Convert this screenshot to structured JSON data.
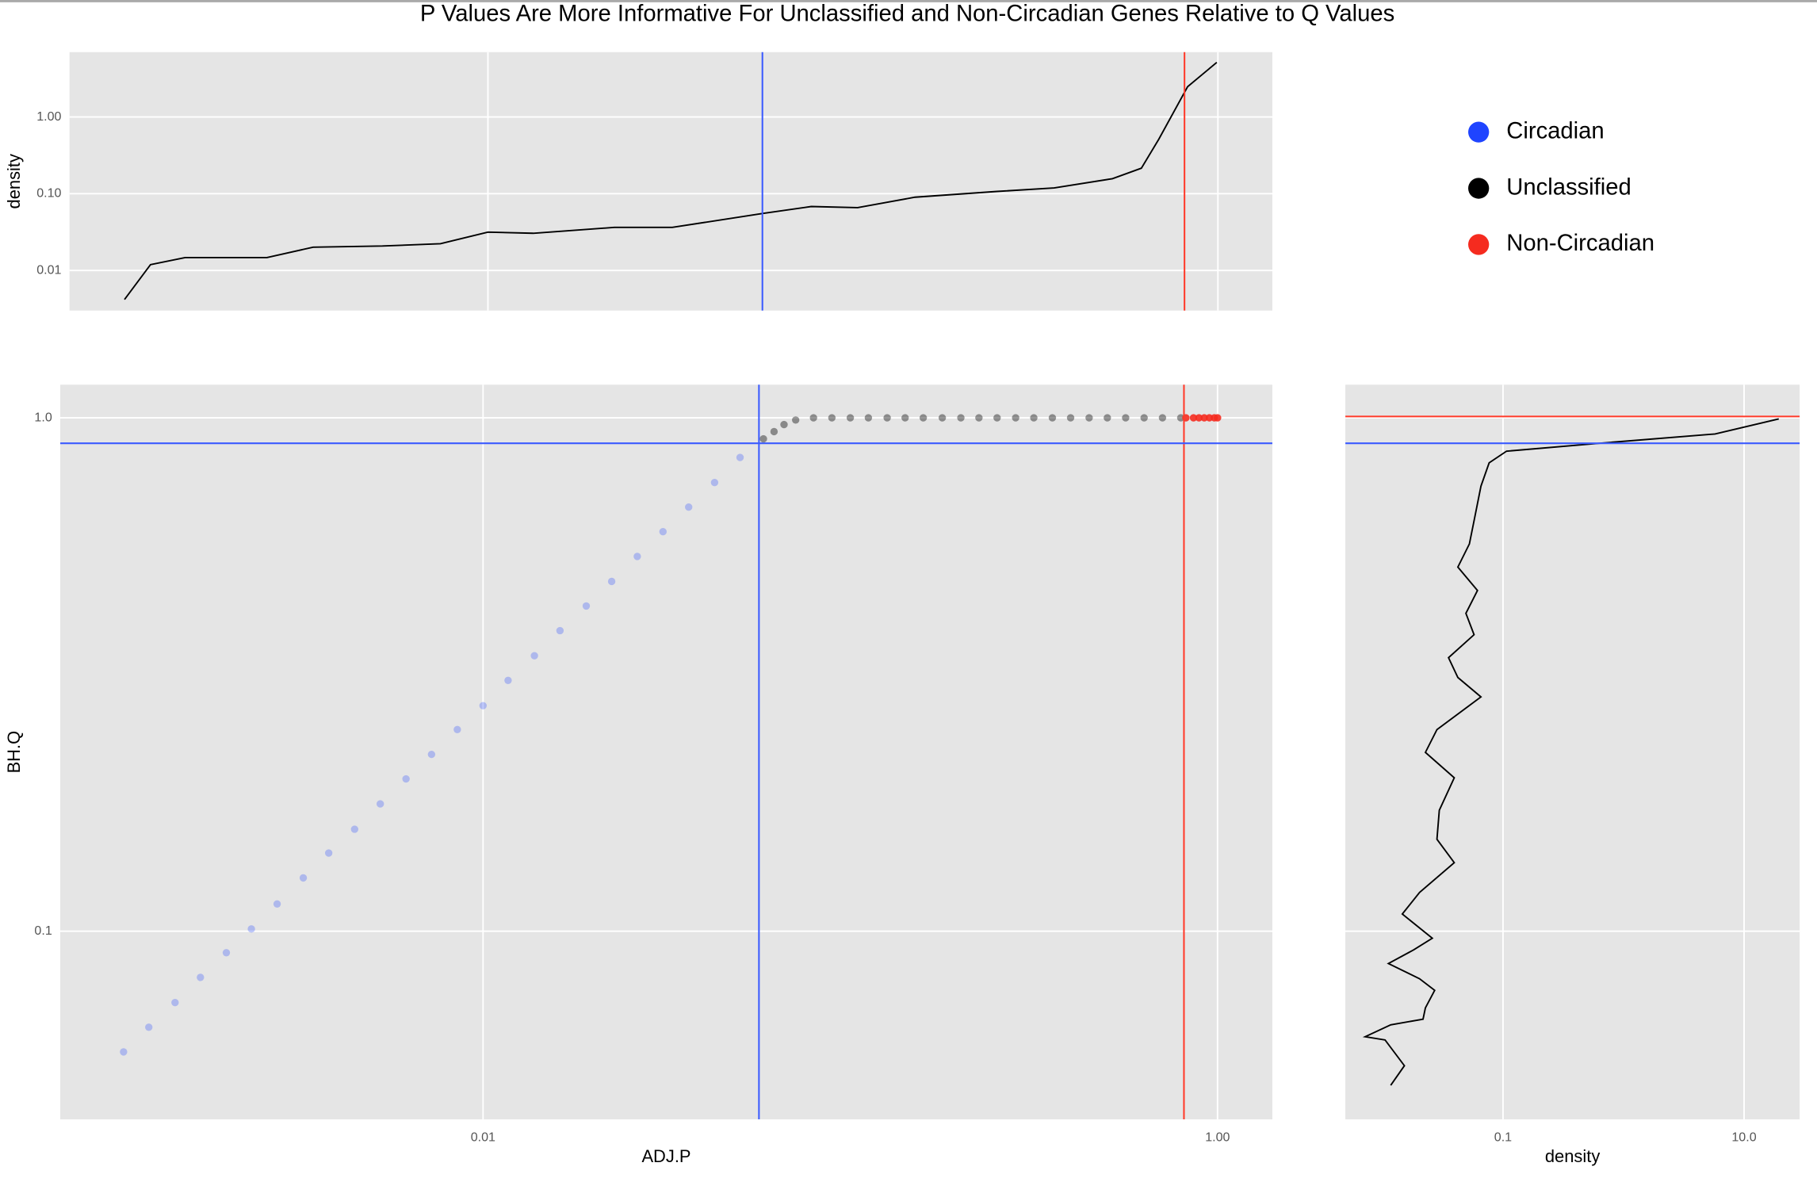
{
  "chart_data": [
    {
      "type": "line",
      "title": "P Values Are More Informative For Unclassified and Non-Circadian Genes Relative to Q Values",
      "ylabel": "density",
      "xscale": "log",
      "yscale": "log",
      "xlim": [
        0.000714,
        1.41
      ],
      "ylim": [
        0.003,
        7
      ],
      "xticks": [
        0.01,
        1
      ],
      "xtick_labels": false,
      "yticks": [
        0.01,
        {
          "value": 0.1,
          "label": "0.10"
        },
        {
          "value": 1,
          "label": "1.00"
        }
      ],
      "ytick_labels": true,
      "grid": true,
      "color": "#000000",
      "x": [
        0.00101,
        0.00119,
        0.00148,
        0.00248,
        0.00332,
        0.00514,
        0.00741,
        0.01,
        0.0133,
        0.0222,
        0.032,
        0.0565,
        0.0769,
        0.103,
        0.148,
        0.248,
        0.356,
        0.514,
        0.617,
        0.689,
        0.826,
        0.993
      ],
      "values": [
        0.00418,
        0.0119,
        0.0147,
        0.0147,
        0.0201,
        0.0208,
        0.0223,
        0.0316,
        0.0305,
        0.0364,
        0.0364,
        0.0552,
        0.0681,
        0.0658,
        0.0901,
        0.107,
        0.119,
        0.157,
        0.215,
        0.515,
        2.48,
        5.15
      ],
      "vlines": [
        {
          "value": 0.0565,
          "color": "#3b5bff"
        },
        {
          "value": 0.81,
          "color": "#ff3a2a"
        }
      ]
    },
    {
      "type": "scatter",
      "xlabel": "ADJ.P",
      "ylabel": "BH.Q",
      "xscale": "log",
      "yscale": "log",
      "xlim": [
        0.000706,
        1.41
      ],
      "ylim": [
        0.043,
        1.16
      ],
      "xticks": [
        0.01,
        {
          "value": 1,
          "label": "1.00"
        }
      ],
      "xtick_labels": true,
      "yticks": [
        0.1,
        {
          "value": 1,
          "label": "1.0"
        }
      ],
      "ytick_labels": true,
      "grid": true,
      "legend": "right",
      "series": [
        {
          "name": "Circadian",
          "color": "#1f44ff",
          "x": [
            0.00105,
            0.00123,
            0.00145,
            0.0017,
            0.002,
            0.00234,
            0.00275,
            0.00324,
            0.0038,
            0.00447,
            0.00525,
            0.00617,
            0.00724,
            0.00851,
            0.01,
            0.0117,
            0.0138,
            0.0162,
            0.0191,
            0.0224,
            0.0263,
            0.0309,
            0.0363,
            0.0427,
            0.0501
          ],
          "values": [
            0.0582,
            0.065,
            0.0726,
            0.0813,
            0.0908,
            0.101,
            0.113,
            0.127,
            0.142,
            0.158,
            0.177,
            0.198,
            0.221,
            0.247,
            0.275,
            0.308,
            0.344,
            0.385,
            0.43,
            0.48,
            0.537,
            0.6,
            0.67,
            0.748,
            0.837
          ]
        },
        {
          "name": "Unclassified",
          "color": "#000000",
          "x": [
            0.058,
            0.062,
            0.066,
            0.071,
            0.0794,
            0.0891,
            0.1,
            0.112,
            0.126,
            0.141,
            0.158,
            0.178,
            0.2,
            0.224,
            0.251,
            0.282,
            0.316,
            0.355,
            0.398,
            0.447,
            0.501,
            0.562,
            0.631,
            0.708,
            0.794
          ],
          "values": [
            0.91,
            0.94,
            0.97,
            0.99,
            1,
            1,
            1,
            1,
            1,
            1,
            1,
            1,
            1,
            1,
            1,
            1,
            1,
            1,
            1,
            1,
            1,
            1,
            1,
            1,
            1
          ]
        },
        {
          "name": "Non-Circadian",
          "color": "#f52b1f",
          "x": [
            0.82,
            0.86,
            0.89,
            0.92,
            0.95,
            0.98,
            1
          ],
          "values": [
            1,
            1,
            1,
            1,
            1,
            1,
            1
          ]
        }
      ],
      "vlines": [
        {
          "value": 0.0564,
          "color": "#3b5bff"
        },
        {
          "value": 0.81,
          "color": "#ff3a2a"
        }
      ],
      "hlines": [
        {
          "value": 0.892,
          "color": "#3b5bff"
        }
      ]
    },
    {
      "type": "line",
      "orientation": "vertical",
      "xlabel": "density",
      "xscale": "log",
      "yscale": "log",
      "xlim": [
        0.00492,
        28.9
      ],
      "ylim": [
        0.043,
        1.16
      ],
      "xticks": [
        0.1,
        {
          "value": 10,
          "label": "10.0"
        }
      ],
      "xtick_labels": true,
      "yticks": [
        0.1,
        1
      ],
      "ytick_labels": false,
      "grid": true,
      "color": "#000000",
      "x": [
        0.0117,
        0.0152,
        0.0105,
        0.00718,
        0.0117,
        0.0217,
        0.0227,
        0.0271,
        0.0203,
        0.0112,
        0.0182,
        0.0259,
        0.0146,
        0.0203,
        0.0394,
        0.0283,
        0.0296,
        0.0394,
        0.0227,
        0.0283,
        0.0656,
        0.0422,
        0.0353,
        0.0575,
        0.0492,
        0.0614,
        0.0422,
        0.0526,
        0.0575,
        0.0656,
        0.0767,
        0.107,
        0.628,
        5.75,
        19.4
      ],
      "values": [
        0.0501,
        0.0547,
        0.0614,
        0.0623,
        0.0657,
        0.0674,
        0.0709,
        0.0767,
        0.0808,
        0.0865,
        0.092,
        0.0969,
        0.108,
        0.119,
        0.136,
        0.151,
        0.172,
        0.199,
        0.223,
        0.247,
        0.286,
        0.312,
        0.341,
        0.378,
        0.416,
        0.461,
        0.512,
        0.568,
        0.63,
        0.736,
        0.817,
        0.861,
        0.892,
        0.93,
        0.995
      ],
      "hlines": [
        {
          "value": 1.006,
          "color": "#ff3a2a"
        },
        {
          "value": 0.892,
          "color": "#3b5bff"
        }
      ]
    }
  ]
}
